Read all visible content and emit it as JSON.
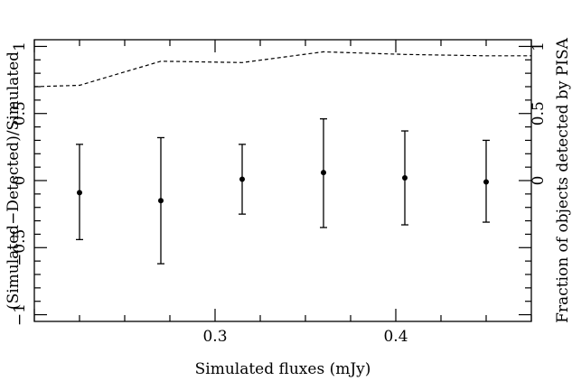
{
  "chart_data": {
    "type": "scatter",
    "xlabel": "Simulated fluxes (mJy)",
    "ylabel": "(Simulated−Detected)/Simulated",
    "y2label": "Fraction of objects detected by PISA",
    "xlim": [
      0.2,
      0.475
    ],
    "ylim": [
      -1.05,
      1.05
    ],
    "y2lim": [
      -1.05,
      1.05
    ],
    "x_ticks": [
      {
        "value": 0.3,
        "label": "0.3"
      },
      {
        "value": 0.4,
        "label": "0.4"
      }
    ],
    "y_ticks": [
      {
        "value": 1,
        "label": "1"
      },
      {
        "value": 0.5,
        "label": "0.5"
      },
      {
        "value": 0,
        "label": "0"
      },
      {
        "value": -0.5,
        "label": "−0.5"
      },
      {
        "value": -1,
        "label": "−1"
      }
    ],
    "y2_ticks": [
      {
        "value": 1,
        "label": "1"
      },
      {
        "value": 0.5,
        "label": "0.5"
      },
      {
        "value": 0,
        "label": "0"
      }
    ],
    "grid": false,
    "series": [
      {
        "style": "points-with-errorbars",
        "points": [
          {
            "x": 0.225,
            "y": -0.09,
            "y_low": -0.44,
            "y_high": 0.27
          },
          {
            "x": 0.27,
            "y": -0.15,
            "y_low": -0.62,
            "y_high": 0.32
          },
          {
            "x": 0.315,
            "y": 0.01,
            "y_low": -0.25,
            "y_high": 0.27
          },
          {
            "x": 0.36,
            "y": 0.06,
            "y_low": -0.35,
            "y_high": 0.46
          },
          {
            "x": 0.405,
            "y": 0.02,
            "y_low": -0.33,
            "y_high": 0.37
          },
          {
            "x": 0.45,
            "y": -0.01,
            "y_low": -0.31,
            "y_high": 0.3
          }
        ]
      },
      {
        "style": "dashed-line",
        "axis": "right",
        "x": [
          0.2,
          0.225,
          0.27,
          0.315,
          0.36,
          0.405,
          0.45,
          0.475
        ],
        "y": [
          0.7,
          0.71,
          0.89,
          0.88,
          0.96,
          0.94,
          0.93,
          0.93
        ]
      }
    ]
  }
}
